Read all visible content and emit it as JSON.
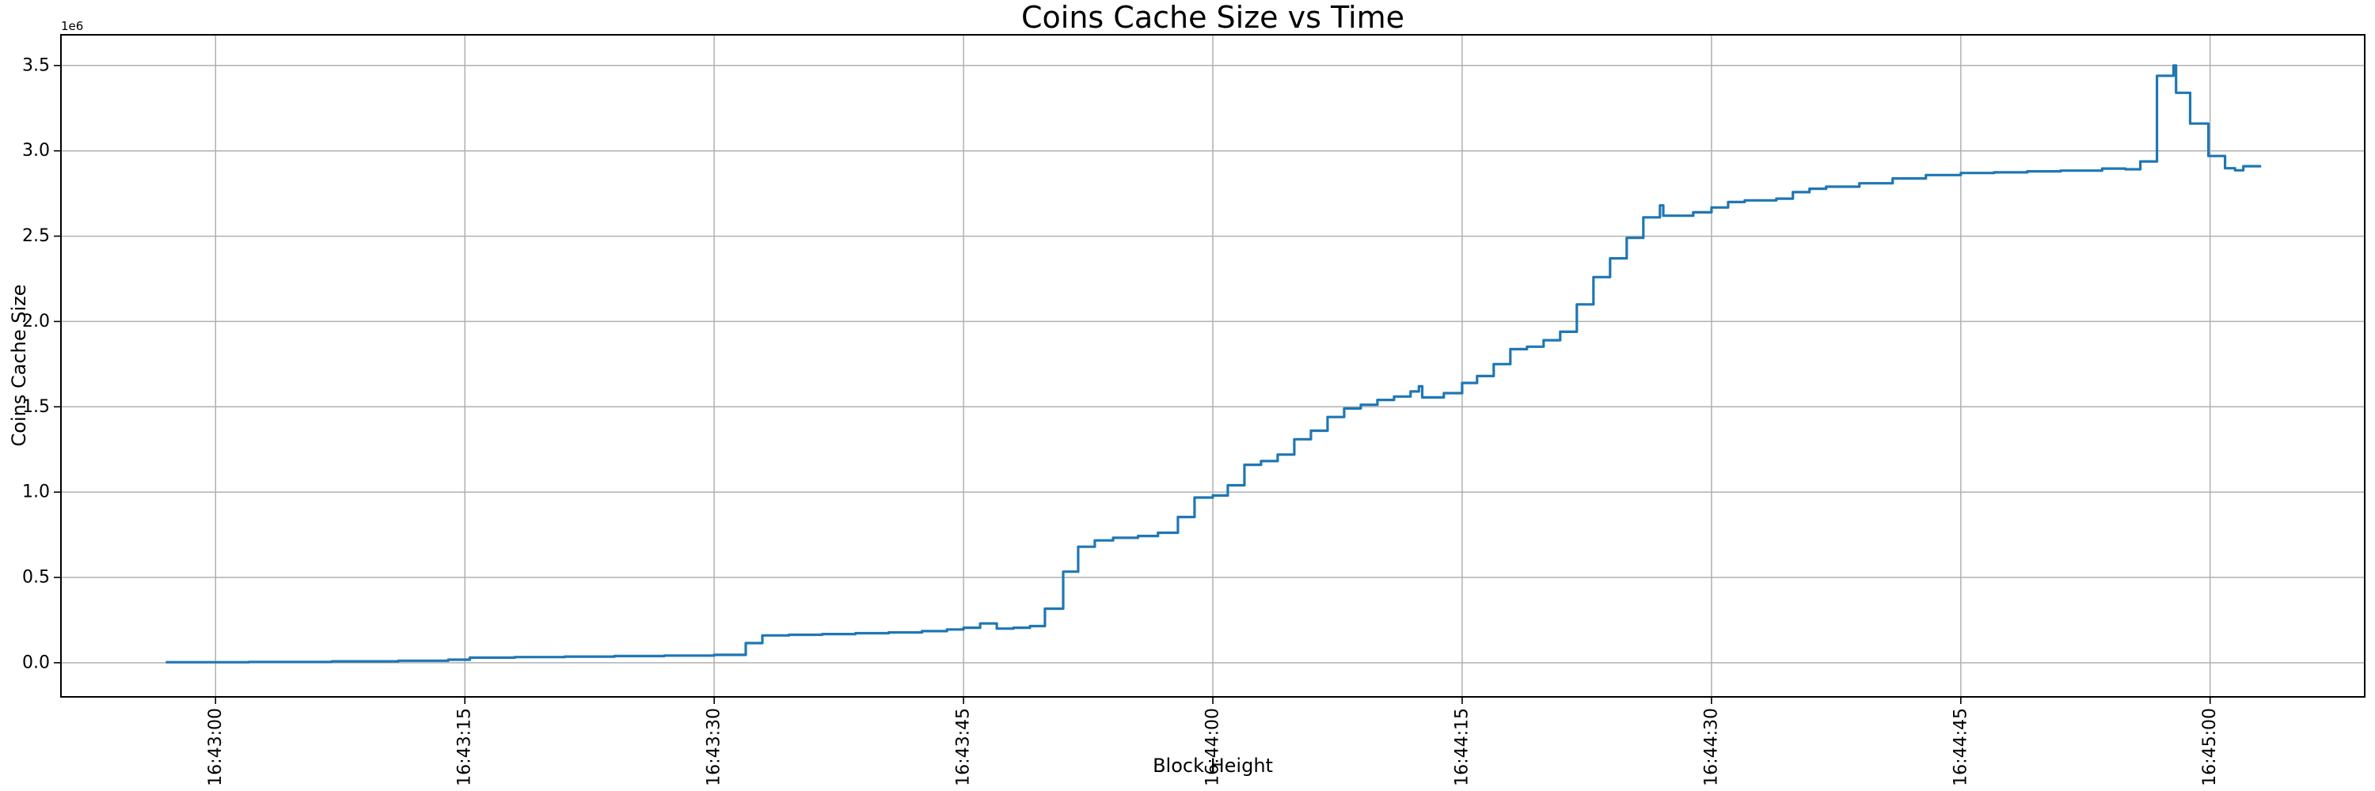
{
  "chart_data": {
    "type": "line",
    "title": "Coins Cache Size vs Time",
    "xlabel": "Block Height",
    "ylabel": "Coins Cache Size",
    "y_offset_label": "1e6",
    "line_color": "#1f77b4",
    "grid_color": "#b0b0b0",
    "spine_color": "#000000",
    "grid": true,
    "legend": false,
    "x_axis_time_base": "16:43:00",
    "xlim_seconds": [
      -9.3,
      129.3
    ],
    "ylim": [
      -200000,
      3680000
    ],
    "x_ticks": [
      {
        "s": 0,
        "label": "16:43:00"
      },
      {
        "s": 15,
        "label": "16:43:15"
      },
      {
        "s": 30,
        "label": "16:43:30"
      },
      {
        "s": 45,
        "label": "16:43:45"
      },
      {
        "s": 60,
        "label": "16:44:00"
      },
      {
        "s": 75,
        "label": "16:44:15"
      },
      {
        "s": 90,
        "label": "16:44:30"
      },
      {
        "s": 105,
        "label": "16:44:45"
      },
      {
        "s": 120,
        "label": "16:45:00"
      }
    ],
    "y_ticks": [
      {
        "v": 0,
        "label": "0.0"
      },
      {
        "v": 500000,
        "label": "0.5"
      },
      {
        "v": 1000000,
        "label": "1.0"
      },
      {
        "v": 1500000,
        "label": "1.5"
      },
      {
        "v": 2000000,
        "label": "2.0"
      },
      {
        "v": 2500000,
        "label": "2.5"
      },
      {
        "v": 3000000,
        "label": "3.0"
      },
      {
        "v": 3500000,
        "label": "3.5"
      }
    ],
    "series": [
      {
        "name": "coins_cache_size",
        "step": "post",
        "points": [
          [
            -3,
            3000
          ],
          [
            2,
            5000
          ],
          [
            7,
            8000
          ],
          [
            11,
            12000
          ],
          [
            14,
            18000
          ],
          [
            15.3,
            30000
          ],
          [
            18,
            33000
          ],
          [
            21,
            36000
          ],
          [
            24,
            39000
          ],
          [
            27,
            42000
          ],
          [
            30,
            46000
          ],
          [
            31.9,
            115000
          ],
          [
            32.9,
            160000
          ],
          [
            34.5,
            164000
          ],
          [
            36.5,
            168000
          ],
          [
            38.5,
            173000
          ],
          [
            40.5,
            178000
          ],
          [
            42.5,
            185000
          ],
          [
            44,
            195000
          ],
          [
            45,
            205000
          ],
          [
            46,
            230000
          ],
          [
            47,
            200000
          ],
          [
            48,
            205000
          ],
          [
            49,
            215000
          ],
          [
            49.9,
            317000
          ],
          [
            51,
            534000
          ],
          [
            51.9,
            680000
          ],
          [
            52.9,
            717000
          ],
          [
            54,
            732000
          ],
          [
            55.5,
            743000
          ],
          [
            56.7,
            762000
          ],
          [
            57.9,
            854000
          ],
          [
            58.9,
            968000
          ],
          [
            60,
            980000
          ],
          [
            60.9,
            1040000
          ],
          [
            61.9,
            1160000
          ],
          [
            62.9,
            1182000
          ],
          [
            63.9,
            1220000
          ],
          [
            64.9,
            1310000
          ],
          [
            65.9,
            1360000
          ],
          [
            66.9,
            1440000
          ],
          [
            67.9,
            1490000
          ],
          [
            68.9,
            1512000
          ],
          [
            69.9,
            1540000
          ],
          [
            70.9,
            1560000
          ],
          [
            71.9,
            1590000
          ],
          [
            72.4,
            1620000
          ],
          [
            72.6,
            1555000
          ],
          [
            73.9,
            1580000
          ],
          [
            75,
            1640000
          ],
          [
            75.9,
            1680000
          ],
          [
            76.9,
            1750000
          ],
          [
            77.9,
            1838000
          ],
          [
            78.9,
            1852000
          ],
          [
            79.9,
            1890000
          ],
          [
            80.9,
            1940000
          ],
          [
            81.9,
            2100000
          ],
          [
            82.9,
            2260000
          ],
          [
            83.9,
            2370000
          ],
          [
            84.9,
            2490000
          ],
          [
            85.9,
            2610000
          ],
          [
            86.9,
            2680000
          ],
          [
            87.1,
            2620000
          ],
          [
            88.9,
            2640000
          ],
          [
            90,
            2668000
          ],
          [
            91,
            2700000
          ],
          [
            92,
            2710000
          ],
          [
            93.9,
            2720000
          ],
          [
            94.9,
            2758000
          ],
          [
            95.9,
            2778000
          ],
          [
            96.9,
            2790000
          ],
          [
            98.9,
            2810000
          ],
          [
            100.9,
            2838000
          ],
          [
            102.9,
            2858000
          ],
          [
            105,
            2870000
          ],
          [
            107,
            2874000
          ],
          [
            109,
            2880000
          ],
          [
            111,
            2884000
          ],
          [
            113.5,
            2896000
          ],
          [
            114.9,
            2892000
          ],
          [
            115.8,
            2938000
          ],
          [
            116.8,
            3440000
          ],
          [
            117.8,
            3500000
          ],
          [
            117.95,
            3340000
          ],
          [
            118.8,
            3160000
          ],
          [
            119.9,
            2970000
          ],
          [
            120.9,
            2898000
          ],
          [
            121.5,
            2886000
          ],
          [
            122,
            2910000
          ],
          [
            123,
            2902000
          ]
        ]
      }
    ]
  }
}
